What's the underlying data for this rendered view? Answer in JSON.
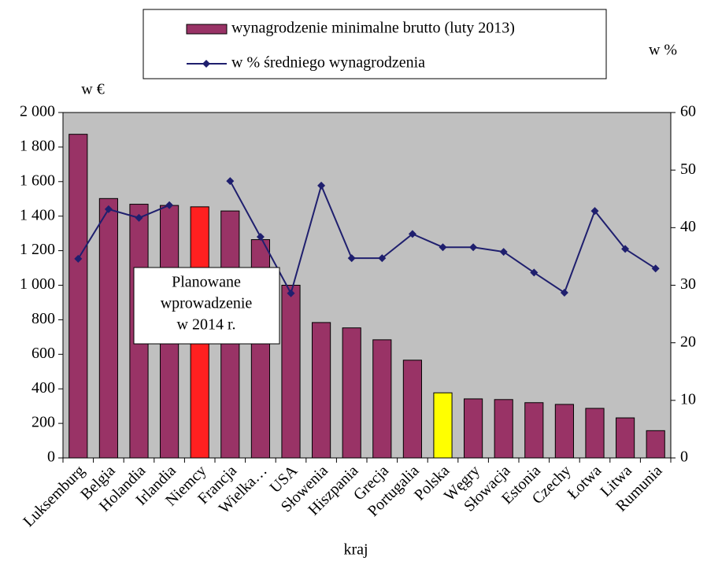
{
  "chart_data": {
    "type": "bar",
    "y_label": "w €",
    "y2_label": "w %",
    "x_label": "kraj",
    "annotation": [
      "Planowane",
      "wprowadzenie",
      "w 2014 r."
    ],
    "categories": [
      "Luksemburg",
      "Belgia",
      "Holandia",
      "Irlandia",
      "Niemcy",
      "Francja",
      "Wielka…",
      "USA",
      "Słowenia",
      "Hiszpania",
      "Grecja",
      "Portugalia",
      "Polska",
      "Węgry",
      "Słowacja",
      "Estonia",
      "Czechy",
      "Łotwa",
      "Litwa",
      "Rumunia"
    ],
    "series": [
      {
        "name": "wynagrodzenie minimalne brutto (luty 2013)",
        "type": "bar",
        "color": "#993366",
        "bar_colors": [
          "#993366",
          "#993366",
          "#993366",
          "#993366",
          "#ff2020",
          "#993366",
          "#993366",
          "#993366",
          "#993366",
          "#993366",
          "#993366",
          "#993366",
          "#ffff00",
          "#993366",
          "#993366",
          "#993366",
          "#993366",
          "#993366",
          "#993366",
          "#993366"
        ],
        "values": [
          1874,
          1502,
          1469,
          1462,
          1454,
          1430,
          1264,
          1000,
          784,
          753,
          684,
          566,
          377,
          342,
          338,
          320,
          310,
          287,
          232,
          158
        ]
      },
      {
        "name": "w % średniego wynagrodzenia",
        "type": "line",
        "axis": "y2",
        "color": "#1f1f6e",
        "values": [
          34.6,
          43.2,
          41.7,
          43.9,
          null,
          48.1,
          38.4,
          28.6,
          47.3,
          34.7,
          34.7,
          38.9,
          36.6,
          36.6,
          35.8,
          32.2,
          28.7,
          42.9,
          36.3,
          32.9
        ]
      }
    ],
    "ylim": [
      0,
      2000
    ],
    "yticks": [
      0,
      200,
      400,
      600,
      800,
      {
        "value": 1000,
        "label": "1 000"
      },
      {
        "value": 1200,
        "label": "1 200"
      },
      {
        "value": 1400,
        "label": "1 400"
      },
      {
        "value": 1600,
        "label": "1 600"
      },
      {
        "value": 1800,
        "label": "1 800"
      },
      {
        "value": 2000,
        "label": "2 000"
      }
    ],
    "y2lim": [
      0,
      60
    ],
    "y2ticks": [
      0,
      10,
      20,
      30,
      40,
      50,
      60
    ],
    "plot_background": "#c0c0c0"
  }
}
